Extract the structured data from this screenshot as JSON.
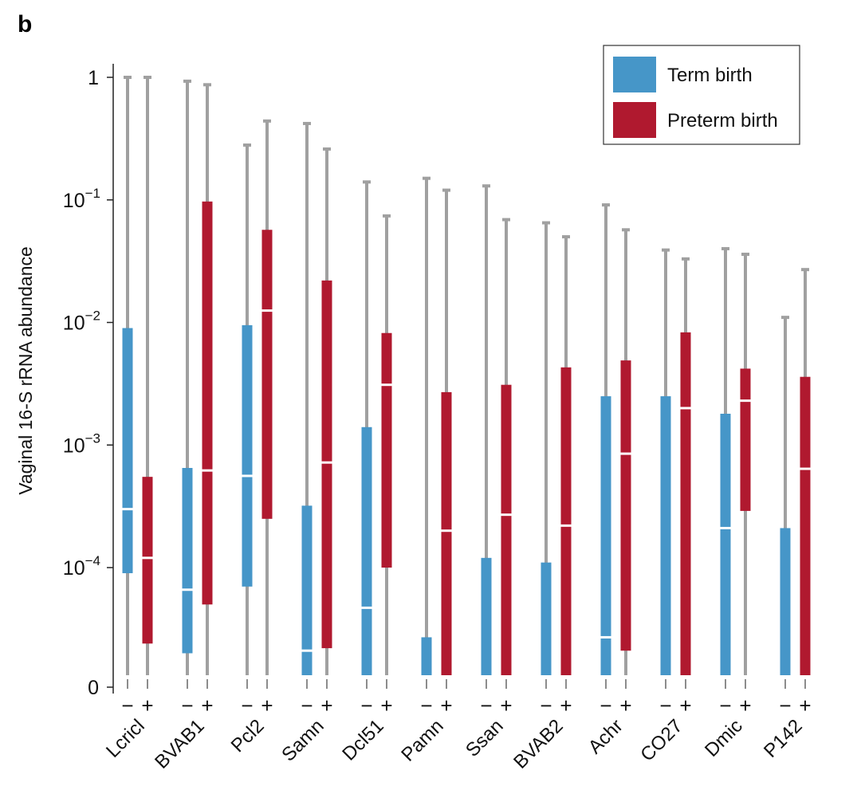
{
  "panel_label": "b",
  "chart_data": {
    "type": "box",
    "ylabel": "Vaginal 16-S rRNA abundance",
    "yscale": "log",
    "ylim": [
      0,
      1
    ],
    "yticks": [
      {
        "label": "0",
        "value": 0
      },
      {
        "label": "10",
        "sup": "−4",
        "value": 0.0001
      },
      {
        "label": "10",
        "sup": "−3",
        "value": 0.001
      },
      {
        "label": "10",
        "sup": "−2",
        "value": 0.01
      },
      {
        "label": "10",
        "sup": "−1",
        "value": 0.1
      },
      {
        "label": "1",
        "value": 1
      }
    ],
    "group_labels": [
      "−",
      "+"
    ],
    "legend": {
      "position": "top-right",
      "entries": [
        {
          "name": "Term birth",
          "color": "#4696c8"
        },
        {
          "name": "Preterm birth",
          "color": "#b0192f"
        }
      ]
    },
    "categories": [
      {
        "name": "Lcricl",
        "term": {
          "whisker_max": 1.0,
          "q3": 0.009,
          "median": 0.0003,
          "q1": 9e-05,
          "whisker_min": 0
        },
        "preterm": {
          "whisker_max": 1.0,
          "q3": 0.00055,
          "median": 0.00012,
          "q1": 2.4e-05,
          "whisker_min": 0
        }
      },
      {
        "name": "BVAB1",
        "term": {
          "whisker_max": 0.93,
          "q3": 0.00065,
          "median": 6.6e-05,
          "q1": 2e-05,
          "whisker_min": 0
        },
        "preterm": {
          "whisker_max": 0.87,
          "q3": 0.097,
          "median": 0.00062,
          "q1": 5e-05,
          "whisker_min": 0
        }
      },
      {
        "name": "Pcl2",
        "term": {
          "whisker_max": 0.28,
          "q3": 0.0095,
          "median": 0.00056,
          "q1": 7e-05,
          "whisker_min": 0
        },
        "preterm": {
          "whisker_max": 0.44,
          "q3": 0.057,
          "median": 0.0125,
          "q1": 0.00025,
          "whisker_min": 0
        }
      },
      {
        "name": "Samn",
        "term": {
          "whisker_max": 0.42,
          "q3": 0.00032,
          "median": 2.1e-05,
          "q1": 0,
          "whisker_min": 0
        },
        "preterm": {
          "whisker_max": 0.26,
          "q3": 0.022,
          "median": 0.00072,
          "q1": 2.2e-05,
          "whisker_min": 0
        }
      },
      {
        "name": "Dcl51",
        "term": {
          "whisker_max": 0.14,
          "q3": 0.0014,
          "median": 4.7e-05,
          "q1": 0,
          "whisker_min": 0
        },
        "preterm": {
          "whisker_max": 0.074,
          "q3": 0.0082,
          "median": 0.0031,
          "q1": 0.0001,
          "whisker_min": 0
        }
      },
      {
        "name": "Pamn",
        "term": {
          "whisker_max": 0.15,
          "q3": 2.7e-05,
          "median": null,
          "q1": 0,
          "whisker_min": 0
        },
        "preterm": {
          "whisker_max": 0.12,
          "q3": 0.0027,
          "median": 0.0002,
          "q1": 0,
          "whisker_min": 0
        }
      },
      {
        "name": "Ssan",
        "term": {
          "whisker_max": 0.13,
          "q3": 0.00012,
          "median": null,
          "q1": 0,
          "whisker_min": 0
        },
        "preterm": {
          "whisker_max": 0.069,
          "q3": 0.0031,
          "median": 0.00027,
          "q1": 0,
          "whisker_min": 0
        }
      },
      {
        "name": "BVAB2",
        "term": {
          "whisker_max": 0.065,
          "q3": 0.00011,
          "median": null,
          "q1": 0,
          "whisker_min": 0
        },
        "preterm": {
          "whisker_max": 0.05,
          "q3": 0.0043,
          "median": 0.00022,
          "q1": 0,
          "whisker_min": 0
        }
      },
      {
        "name": "Achr",
        "term": {
          "whisker_max": 0.091,
          "q3": 0.0025,
          "median": 2.7e-05,
          "q1": 0,
          "whisker_min": 0
        },
        "preterm": {
          "whisker_max": 0.057,
          "q3": 0.0049,
          "median": 0.00085,
          "q1": 2.1e-05,
          "whisker_min": 0
        }
      },
      {
        "name": "CO27",
        "term": {
          "whisker_max": 0.039,
          "q3": 0.0025,
          "median": null,
          "q1": 0,
          "whisker_min": 0
        },
        "preterm": {
          "whisker_max": 0.033,
          "q3": 0.0083,
          "median": 0.002,
          "q1": 0,
          "whisker_min": 0
        }
      },
      {
        "name": "Dmic",
        "term": {
          "whisker_max": 0.04,
          "q3": 0.0018,
          "median": 0.00021,
          "q1": 0,
          "whisker_min": 0
        },
        "preterm": {
          "whisker_max": 0.036,
          "q3": 0.0042,
          "median": 0.0023,
          "q1": 0.00029,
          "whisker_min": 0
        }
      },
      {
        "name": "P142",
        "term": {
          "whisker_max": 0.011,
          "q3": 0.00021,
          "median": null,
          "q1": 0,
          "whisker_min": 0
        },
        "preterm": {
          "whisker_max": 0.027,
          "q3": 0.0036,
          "median": 0.00064,
          "q1": 0,
          "whisker_min": 0
        }
      }
    ]
  }
}
